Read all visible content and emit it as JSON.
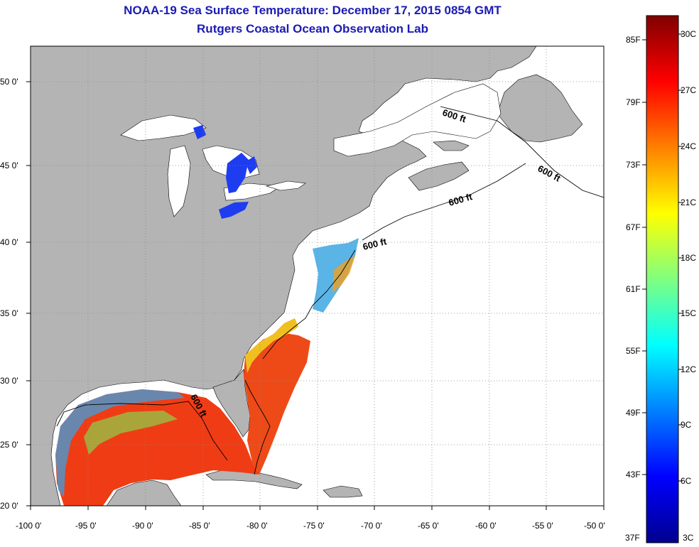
{
  "header": {
    "title": "NOAA-19 Sea Surface Temperature:  December 17, 2015 0854 GMT",
    "subtitle": "Rutgers Coastal Ocean Observation Lab"
  },
  "map": {
    "lon_range": [
      -100,
      -50
    ],
    "lat_range": [
      20,
      52
    ],
    "grid": true,
    "x_ticks": [
      "-100 0'",
      "-95 0'",
      "-90 0'",
      "-85 0'",
      "-80 0'",
      "-75 0'",
      "-70 0'",
      "-65 0'",
      "-60 0'",
      "-55 0'",
      "-50 0'"
    ],
    "y_ticks": [
      "50 0'",
      "45 0'",
      "40 0'",
      "35 0'",
      "30 0'",
      "25 0'",
      "20 0'"
    ],
    "contour_labels": [
      "600 ft",
      "600 ft",
      "600 ft",
      "600 ft",
      "600 ft"
    ],
    "land_color": "#b4b4b4",
    "no_data_color": "#ffffff"
  },
  "colorbar": {
    "left_labels": [
      "85F",
      "79F",
      "73F",
      "67F",
      "61F",
      "55F",
      "49F",
      "43F",
      "37F"
    ],
    "right_labels": [
      "30C",
      "27C",
      "24C",
      "21C",
      "18C",
      "15C",
      "12C",
      "9C",
      "6C",
      "3C"
    ],
    "colormap": "jet",
    "min_c": 3,
    "max_c": 30
  }
}
